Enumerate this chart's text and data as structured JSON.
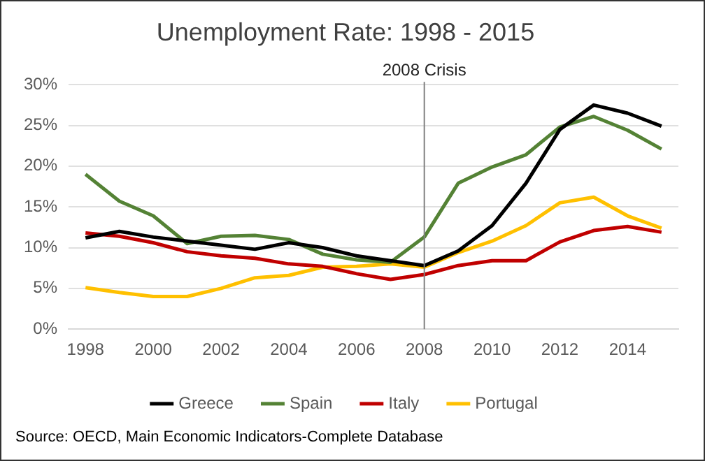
{
  "chart_data": {
    "type": "line",
    "title": "Unemployment Rate: 1998 - 2015",
    "categories": [
      "1998",
      null,
      "2000",
      null,
      "2002",
      null,
      "2004",
      null,
      "2006",
      null,
      "2008",
      null,
      "2010",
      null,
      "2012",
      null,
      "2014",
      null
    ],
    "series": [
      {
        "name": "Greece",
        "color": "#000000",
        "values": [
          11.2,
          12.0,
          11.3,
          10.8,
          10.3,
          9.8,
          10.6,
          10.0,
          9.0,
          8.4,
          7.8,
          9.6,
          12.7,
          17.9,
          24.5,
          27.5,
          26.5,
          24.9
        ]
      },
      {
        "name": "Spain",
        "color": "#548235",
        "values": [
          19.0,
          15.7,
          13.9,
          10.5,
          11.4,
          11.5,
          11.0,
          9.2,
          8.5,
          8.2,
          11.3,
          17.9,
          19.9,
          21.4,
          24.8,
          26.1,
          24.4,
          22.1
        ]
      },
      {
        "name": "Italy",
        "color": "#c00000",
        "values": [
          11.8,
          11.4,
          10.6,
          9.5,
          9.0,
          8.7,
          8.0,
          7.7,
          6.8,
          6.1,
          6.7,
          7.8,
          8.4,
          8.4,
          10.7,
          12.1,
          12.6,
          11.9
        ]
      },
      {
        "name": "Portugal",
        "color": "#ffc000",
        "values": [
          5.1,
          4.5,
          4.0,
          4.0,
          5.0,
          6.3,
          6.6,
          7.6,
          7.7,
          8.0,
          7.6,
          9.4,
          10.8,
          12.7,
          15.5,
          16.2,
          13.9,
          12.4
        ]
      }
    ],
    "ylim": [
      0,
      30
    ],
    "yticks": [
      {
        "value": 0,
        "label": "0%"
      },
      {
        "value": 5,
        "label": "5%"
      },
      {
        "value": 10,
        "label": "10%"
      },
      {
        "value": 15,
        "label": "15%"
      },
      {
        "value": 20,
        "label": "20%"
      },
      {
        "value": 25,
        "label": "25%"
      },
      {
        "value": 30,
        "label": "30%"
      }
    ],
    "ref_lines": [
      {
        "axis": "x",
        "value": "2008",
        "label": "2008 Crisis",
        "color": "#808080"
      }
    ],
    "grid": "y",
    "legend": "bottom",
    "marker": "none",
    "line_style": "solid",
    "annotations": [
      "Source: OECD, Main Economic Indicators-Complete Database"
    ]
  }
}
